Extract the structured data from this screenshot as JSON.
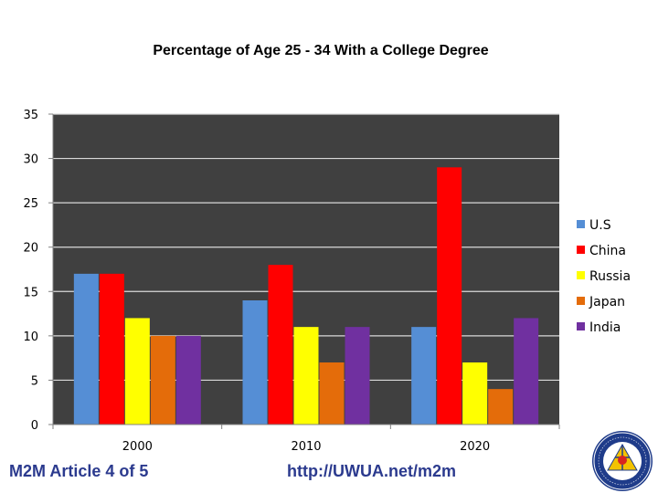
{
  "chart_data": {
    "type": "bar",
    "title": "Percentage of Age 25 - 34 With a College Degree",
    "xlabel": "",
    "ylabel": "",
    "categories": [
      "2000",
      "2010",
      "2020"
    ],
    "series": [
      {
        "name": "U.S",
        "values": [
          17,
          14,
          11
        ],
        "color": "#558ed5"
      },
      {
        "name": "China",
        "values": [
          17,
          18,
          29
        ],
        "color": "#ff0000"
      },
      {
        "name": "Russia",
        "values": [
          12,
          11,
          7
        ],
        "color": "#ffff00"
      },
      {
        "name": "Japan",
        "values": [
          10,
          7,
          4
        ],
        "color": "#e46c0a"
      },
      {
        "name": "India",
        "values": [
          10,
          11,
          12
        ],
        "color": "#7030a0"
      }
    ],
    "ylim": [
      0,
      35
    ],
    "yticks": [
      "0",
      "5",
      "10",
      "15",
      "20",
      "25",
      "30",
      "35"
    ],
    "grid": true,
    "plot_background": "#404040",
    "legend": "right"
  },
  "footer": {
    "left_text": "M2M Article 4 of 5",
    "right_text": "http://UWUA.net/m2m"
  },
  "logo": {
    "icon": "uwua-seal-icon",
    "text": "UTILITY WORKERS UNION OF AMERICA AFL-CIO"
  }
}
